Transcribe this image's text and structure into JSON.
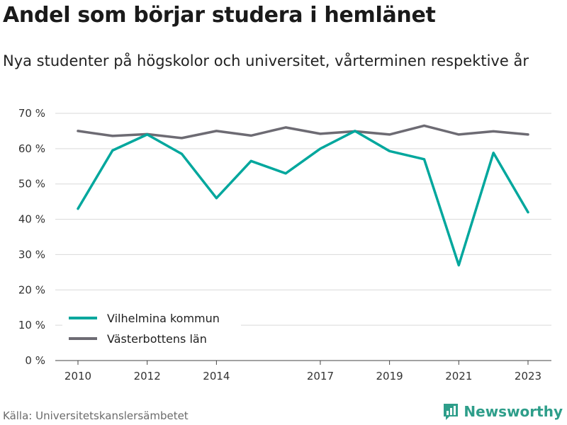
{
  "title": "Andel som börjar studera i hemlänet",
  "subtitle": "Nya studenter på högskolor och universitet, vårterminen respektive år",
  "source": "Källa: Universitetskanslersämbetet",
  "brand": "Newsworthy",
  "colors": {
    "teal": "#00a79d",
    "gray": "#6d6b73",
    "grid": "#d9d9d9",
    "brand": "#2e9e8a"
  },
  "chart_data": {
    "type": "line",
    "x": [
      2010,
      2011,
      2012,
      2013,
      2014,
      2015,
      2016,
      2017,
      2018,
      2019,
      2020,
      2021,
      2022,
      2023
    ],
    "x_ticks": [
      2010,
      2012,
      2014,
      2017,
      2019,
      2021,
      2023
    ],
    "y_ticks": [
      0,
      10,
      20,
      30,
      40,
      50,
      60,
      70
    ],
    "y_tick_labels": [
      "0 %",
      "10 %",
      "20 %",
      "30 %",
      "40 %",
      "50 %",
      "60 %",
      "70 %"
    ],
    "ylim": [
      0,
      70
    ],
    "grid": true,
    "legend_position": "bottom-left",
    "series": [
      {
        "name": "Vilhelmina kommun",
        "color": "#00a79d",
        "values": [
          43,
          59.5,
          64,
          58.5,
          46,
          56.5,
          53,
          60,
          65,
          59.3,
          57,
          27,
          58.8,
          42
        ]
      },
      {
        "name": "Västerbottens län",
        "color": "#6d6b73",
        "values": [
          65,
          63.6,
          64.1,
          63,
          65,
          63.7,
          66,
          64.2,
          64.9,
          64,
          66.5,
          64,
          64.9,
          64
        ]
      }
    ]
  }
}
